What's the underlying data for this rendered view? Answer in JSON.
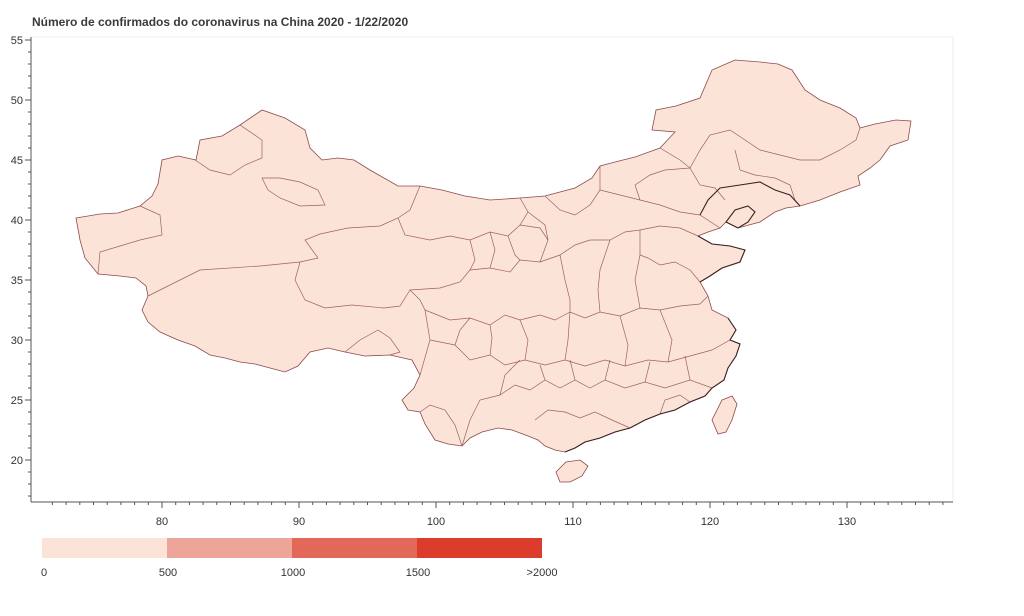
{
  "chart_data": {
    "type": "choropleth",
    "title": "Número de confirmados do coronavirus na China 2020 - 1/22/2020",
    "xlim": [
      72,
      137.5
    ],
    "ylim": [
      16,
      55.5
    ],
    "x_ticks": [
      "80",
      "90",
      "100",
      "110",
      "120",
      "130"
    ],
    "y_ticks": [
      "20",
      "25",
      "30",
      "35",
      "40",
      "45",
      "50",
      "55"
    ],
    "region_fill": "#fbe3d8",
    "region_stroke": "#8e4a4a",
    "grid": false,
    "colorbar": {
      "placement": "bottom-left",
      "labels": [
        "0",
        "500",
        "1000",
        "1500",
        ">2000"
      ],
      "colors": [
        "#fbe3d8",
        "#eda59a",
        "#e2695a",
        "#dc3c2c"
      ]
    }
  }
}
